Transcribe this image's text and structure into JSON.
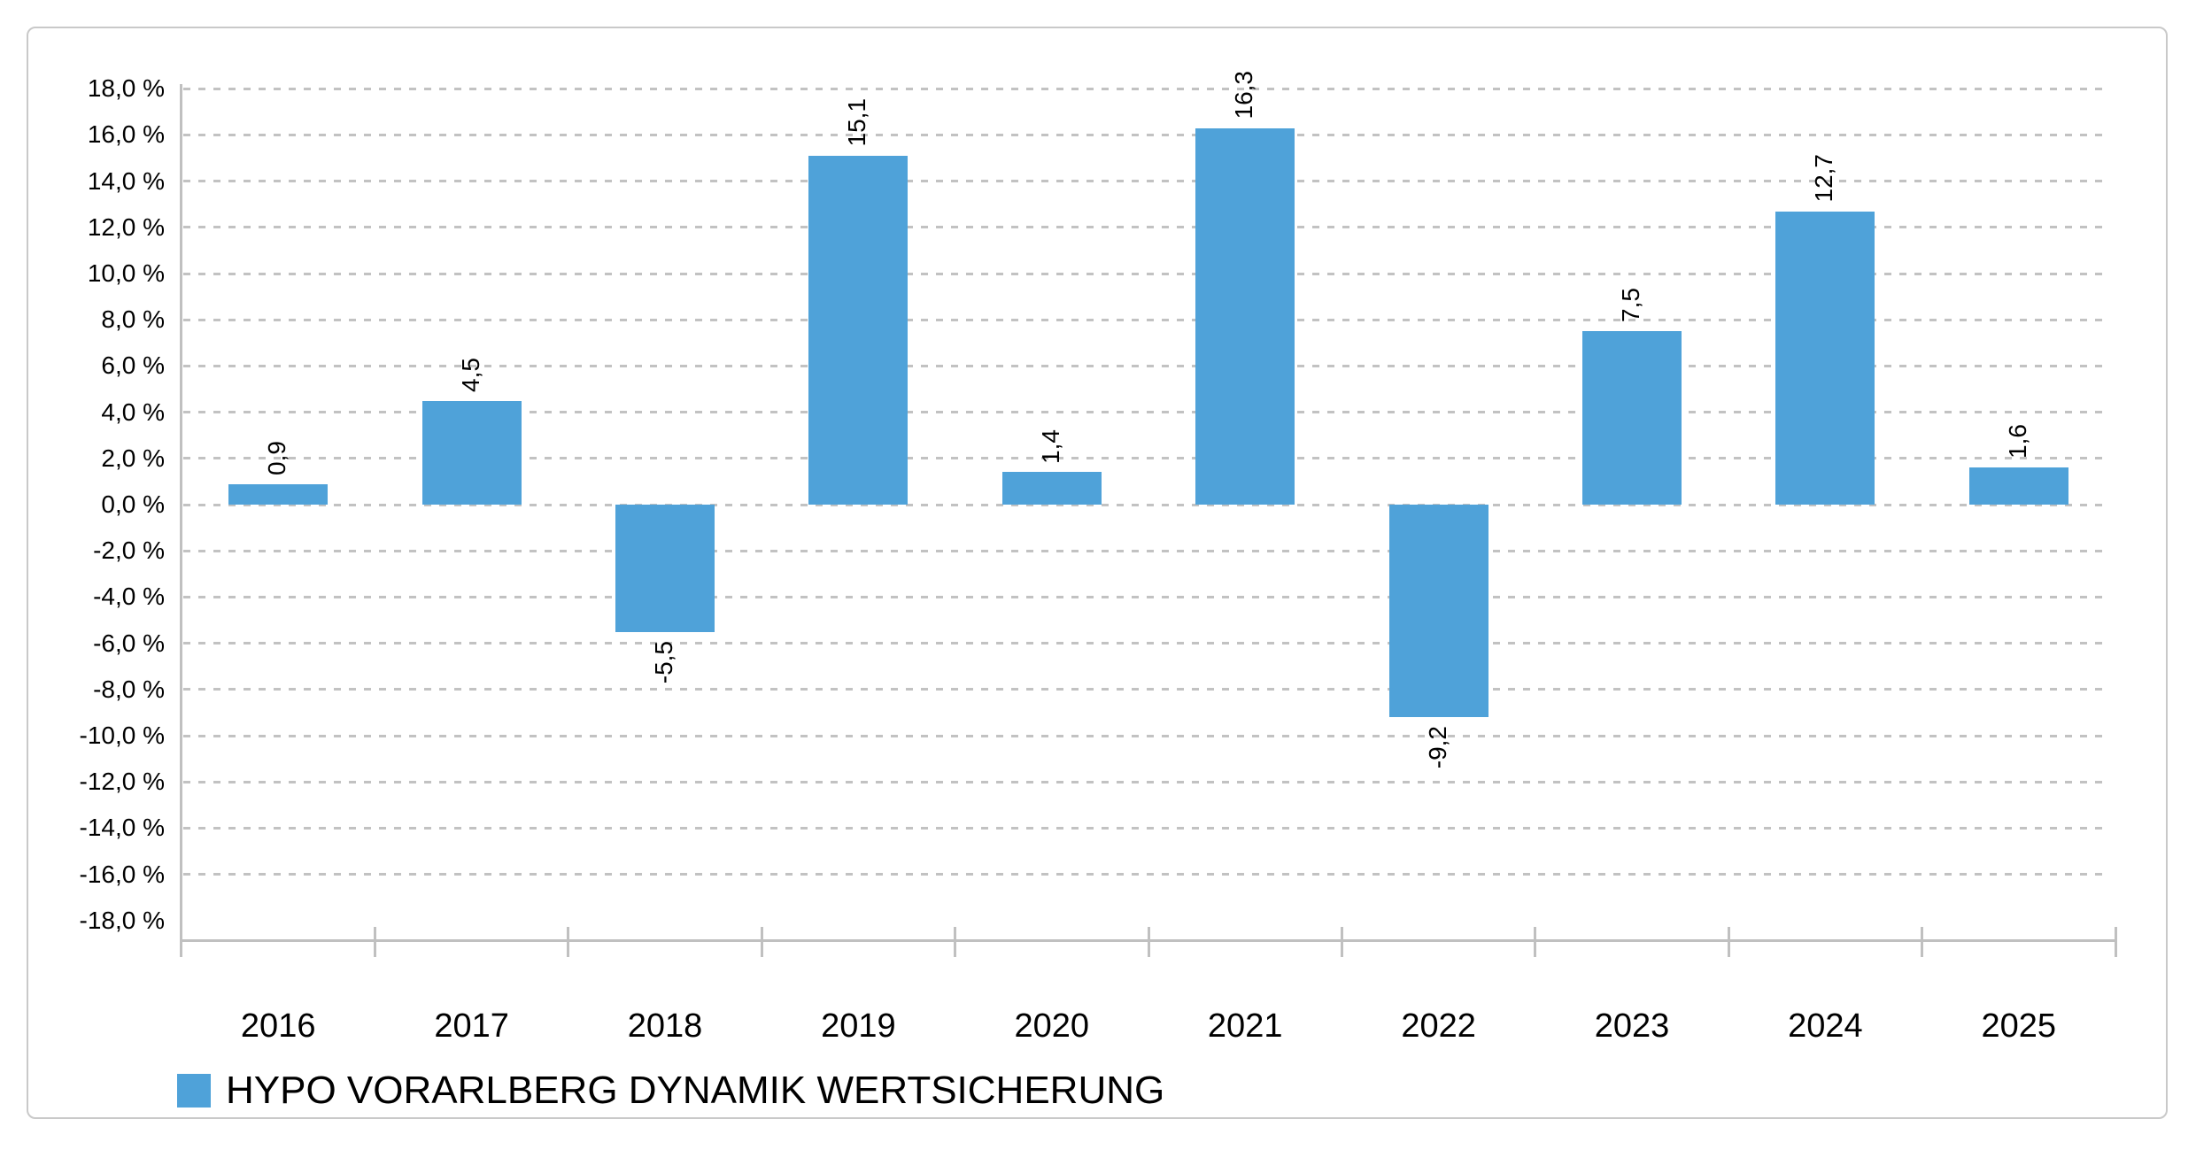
{
  "legend": {
    "label": "HYPO VORARLBERG DYNAMIK WERTSICHERUNG"
  },
  "colors": {
    "bar": "#4fa2d9",
    "gridline": "#c2c2c2",
    "axis": "#c0c0c0",
    "frame_border": "#c9c9c9",
    "text": "#000000"
  },
  "chart_data": {
    "type": "bar",
    "title": "",
    "xlabel": "",
    "ylabel": "",
    "categories": [
      "2016",
      "2017",
      "2018",
      "2019",
      "2020",
      "2021",
      "2022",
      "2023",
      "2024",
      "2025"
    ],
    "values": [
      0.9,
      4.5,
      -5.5,
      15.1,
      1.4,
      16.3,
      -9.2,
      7.5,
      12.7,
      1.6
    ],
    "value_labels": [
      "0,9",
      "4,5",
      "-5,5",
      "15,1",
      "1,4",
      "16,3",
      "-9,2",
      "7,5",
      "12,7",
      "1,6"
    ],
    "series": [
      {
        "name": "HYPO VORARLBERG DYNAMIK WERTSICHERUNG",
        "values": [
          0.9,
          4.5,
          -5.5,
          15.1,
          1.4,
          16.3,
          -9.2,
          7.5,
          12.7,
          1.6
        ]
      }
    ],
    "ylim": [
      -18,
      18
    ],
    "y_tick_step": 2,
    "grid": true,
    "gridline_style": "dashed",
    "value_label_rotation": -90,
    "legend_position": "bottom-left",
    "y_ticks": [
      {
        "value": 18,
        "label": "18,0 %"
      },
      {
        "value": 16,
        "label": "16,0 %"
      },
      {
        "value": 14,
        "label": "14,0 %"
      },
      {
        "value": 12,
        "label": "12,0 %"
      },
      {
        "value": 10,
        "label": "10,0 %"
      },
      {
        "value": 8,
        "label": "8,0 %"
      },
      {
        "value": 6,
        "label": "6,0 %"
      },
      {
        "value": 4,
        "label": "4,0 %"
      },
      {
        "value": 2,
        "label": "2,0 %"
      },
      {
        "value": 0,
        "label": "0,0 %"
      },
      {
        "value": -2,
        "label": "-2,0 %"
      },
      {
        "value": -4,
        "label": "-4,0 %"
      },
      {
        "value": -6,
        "label": "-6,0 %"
      },
      {
        "value": -8,
        "label": "-8,0 %"
      },
      {
        "value": -10,
        "label": "-10,0 %"
      },
      {
        "value": -12,
        "label": "-12,0 %"
      },
      {
        "value": -14,
        "label": "-14,0 %"
      },
      {
        "value": -16,
        "label": "-16,0 %"
      },
      {
        "value": -18,
        "label": "-18,0 %"
      }
    ]
  }
}
